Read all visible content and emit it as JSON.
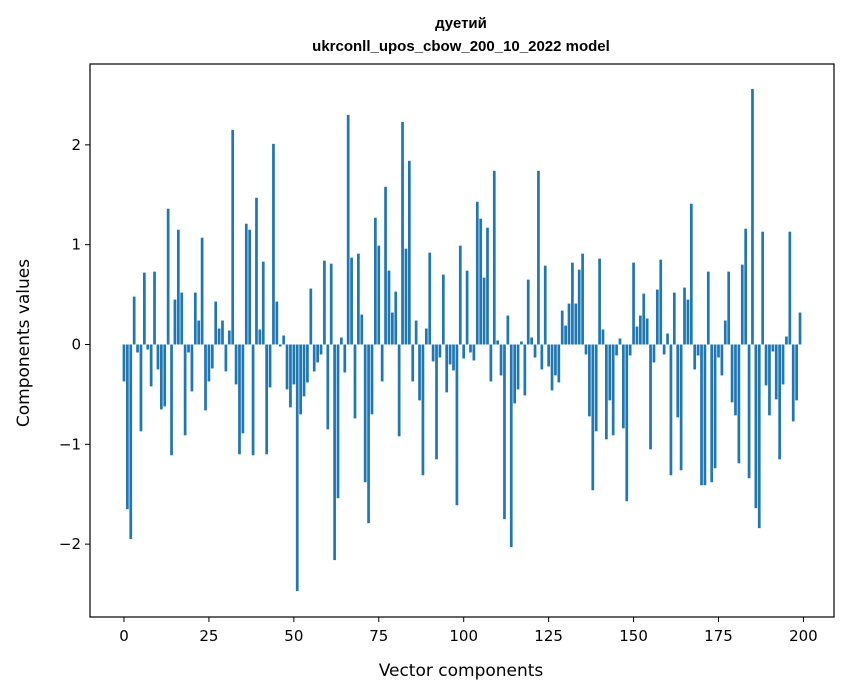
{
  "chart_data": {
    "type": "bar",
    "title": "дуетий",
    "subtitle": "ukrconll_upos_cbow_200_10_2022 model",
    "xlabel": "Vector components",
    "ylabel": "Components values",
    "xlim": [
      -10,
      209
    ],
    "ylim": [
      -2.73,
      2.81
    ],
    "grid": false,
    "xticks": [
      0,
      25,
      50,
      75,
      100,
      125,
      150,
      175,
      200
    ],
    "xtick_labels": [
      "0",
      "25",
      "50",
      "75",
      "100",
      "125",
      "150",
      "175",
      "200"
    ],
    "yticks": [
      -2,
      -1,
      0,
      1,
      2
    ],
    "ytick_labels": [
      "−2",
      "−1",
      "0",
      "1",
      "2"
    ],
    "color": "#1f77b4",
    "x": [
      0,
      1,
      2,
      3,
      4,
      5,
      6,
      7,
      8,
      9,
      10,
      11,
      12,
      13,
      14,
      15,
      16,
      17,
      18,
      19,
      20,
      21,
      22,
      23,
      24,
      25,
      26,
      27,
      28,
      29,
      30,
      31,
      32,
      33,
      34,
      35,
      36,
      37,
      38,
      39,
      40,
      41,
      42,
      43,
      44,
      45,
      46,
      47,
      48,
      49,
      50,
      51,
      52,
      53,
      54,
      55,
      56,
      57,
      58,
      59,
      60,
      61,
      62,
      63,
      64,
      65,
      66,
      67,
      68,
      69,
      70,
      71,
      72,
      73,
      74,
      75,
      76,
      77,
      78,
      79,
      80,
      81,
      82,
      83,
      84,
      85,
      86,
      87,
      88,
      89,
      90,
      91,
      92,
      93,
      94,
      95,
      96,
      97,
      98,
      99,
      100,
      101,
      102,
      103,
      104,
      105,
      106,
      107,
      108,
      109,
      110,
      111,
      112,
      113,
      114,
      115,
      116,
      117,
      118,
      119,
      120,
      121,
      122,
      123,
      124,
      125,
      126,
      127,
      128,
      129,
      130,
      131,
      132,
      133,
      134,
      135,
      136,
      137,
      138,
      139,
      140,
      141,
      142,
      143,
      144,
      145,
      146,
      147,
      148,
      149,
      150,
      151,
      152,
      153,
      154,
      155,
      156,
      157,
      158,
      159,
      160,
      161,
      162,
      163,
      164,
      165,
      166,
      167,
      168,
      169,
      170,
      171,
      172,
      173,
      174,
      175,
      176,
      177,
      178,
      179,
      180,
      181,
      182,
      183,
      184,
      185,
      186,
      187,
      188,
      189,
      190,
      191,
      192,
      193,
      194,
      195,
      196,
      197,
      198,
      199
    ],
    "values": [
      -0.37,
      -1.65,
      -1.95,
      0.48,
      -0.08,
      -0.87,
      0.72,
      -0.05,
      -0.42,
      0.73,
      -0.25,
      -0.65,
      -0.62,
      1.36,
      -1.11,
      0.45,
      1.15,
      0.52,
      -0.91,
      -0.08,
      -0.47,
      0.52,
      0.24,
      1.07,
      -0.66,
      -0.37,
      -0.24,
      0.43,
      0.16,
      0.24,
      -0.27,
      0.14,
      2.15,
      -0.4,
      -1.1,
      -0.89,
      1.21,
      1.15,
      -1.11,
      1.47,
      0.15,
      0.83,
      -1.1,
      -0.43,
      2.01,
      0.43,
      -0.02,
      0.09,
      -0.45,
      -0.63,
      -0.4,
      -2.47,
      -0.7,
      -0.52,
      -0.38,
      0.56,
      -0.27,
      -0.18,
      -0.1,
      0.84,
      -0.85,
      0.81,
      -2.16,
      -1.54,
      0.07,
      -0.28,
      2.3,
      0.87,
      -0.74,
      0.91,
      0.3,
      -1.38,
      -1.79,
      -0.7,
      1.27,
      0.99,
      -0.37,
      1.58,
      0.74,
      0.32,
      0.53,
      -0.92,
      2.23,
      0.96,
      1.84,
      -0.37,
      0.24,
      -0.56,
      -1.31,
      0.16,
      0.92,
      -0.17,
      -1.15,
      -0.13,
      0.7,
      -0.48,
      -0.2,
      -0.26,
      -1.61,
      0.99,
      -0.14,
      0.74,
      -0.08,
      -0.16,
      1.43,
      1.26,
      0.67,
      1.17,
      -0.37,
      1.74,
      0.04,
      -0.31,
      -1.75,
      0.29,
      -2.03,
      -0.59,
      -0.45,
      0.03,
      -0.51,
      0.65,
      0.07,
      -0.13,
      1.74,
      -0.25,
      0.79,
      -0.22,
      -0.46,
      -0.31,
      -0.38,
      0.34,
      0.19,
      0.41,
      0.82,
      0.41,
      0.75,
      0.91,
      -0.1,
      -0.72,
      -1.46,
      -0.87,
      0.86,
      0.15,
      -0.95,
      -0.56,
      -0.91,
      -0.11,
      0.06,
      -0.84,
      -1.57,
      -0.11,
      0.82,
      0.18,
      0.29,
      0.51,
      0.26,
      -1.05,
      -0.18,
      0.55,
      0.85,
      -0.1,
      0.11,
      -1.31,
      0.52,
      -0.73,
      -1.26,
      0.57,
      0.45,
      1.41,
      -0.25,
      -0.11,
      -1.41,
      -1.41,
      0.73,
      -1.38,
      -1.24,
      -0.13,
      -0.31,
      0.24,
      0.73,
      -0.58,
      -0.71,
      -1.19,
      0.8,
      1.16,
      -1.34,
      2.56,
      -1.64,
      -1.84,
      1.13,
      -0.41,
      -0.71,
      -0.07,
      -0.55,
      -1.15,
      -0.4,
      0.08,
      1.13,
      -0.77,
      -0.56,
      0.32
    ]
  }
}
